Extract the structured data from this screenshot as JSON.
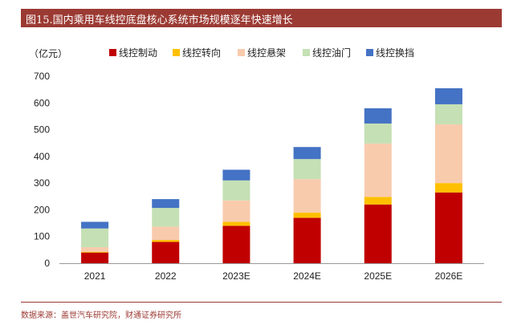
{
  "title": "图15.国内乘用车线控底盘核心系统市场规模逐年快速增长",
  "source": "数据来源：盖世汽车研究院，财通证券研究所",
  "chart_data": {
    "type": "bar",
    "stacked": true,
    "ylabel": "（亿元）",
    "ylim": [
      0,
      700
    ],
    "yticks": [
      0,
      100,
      200,
      300,
      400,
      500,
      600,
      700
    ],
    "categories": [
      "2021",
      "2022",
      "2023E",
      "2024E",
      "2025E",
      "2026E"
    ],
    "legend_position": "top",
    "grid": false,
    "series": [
      {
        "name": "线控制动",
        "color": "#c00000",
        "values": [
          40,
          80,
          140,
          170,
          220,
          265
        ]
      },
      {
        "name": "线控转向",
        "color": "#ffc000",
        "values": [
          3,
          7,
          15,
          20,
          28,
          35
        ]
      },
      {
        "name": "线控悬架",
        "color": "#f8cbad",
        "values": [
          17,
          50,
          80,
          125,
          200,
          220
        ]
      },
      {
        "name": "线控油门",
        "color": "#c5e0b4",
        "values": [
          70,
          70,
          75,
          75,
          75,
          75
        ]
      },
      {
        "name": "线控换挡",
        "color": "#4472c4",
        "values": [
          25,
          33,
          40,
          45,
          57,
          60
        ]
      }
    ]
  }
}
